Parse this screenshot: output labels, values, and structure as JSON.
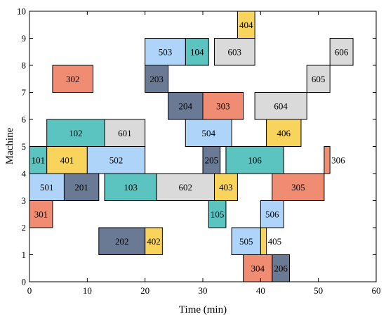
{
  "chart_data": {
    "type": "gantt",
    "title": "",
    "xlabel": "Time (min)",
    "ylabel": "Machine",
    "xlim": [
      0,
      60
    ],
    "ylim": [
      0,
      10
    ],
    "xticks": [
      "0",
      "10",
      "20",
      "30",
      "40",
      "50",
      "60"
    ],
    "yticks": [
      "0",
      "1",
      "2",
      "3",
      "4",
      "5",
      "6",
      "7",
      "8",
      "9",
      "10"
    ],
    "grid": false,
    "colors": {
      "job1": "#5bc4c1",
      "job2": "#6b7a94",
      "job3": "#ef8c72",
      "job4": "#f9d45c",
      "job5": "#aed5f9",
      "job6": "#dadada"
    },
    "operations": [
      {
        "label": "101",
        "job": "job1",
        "x_start": 0,
        "x_end": 3,
        "y_bottom": 4,
        "y_top": 5
      },
      {
        "label": "102",
        "job": "job1",
        "x_start": 3,
        "x_end": 13,
        "y_bottom": 5,
        "y_top": 6
      },
      {
        "label": "103",
        "job": "job1",
        "x_start": 13,
        "x_end": 22,
        "y_bottom": 3,
        "y_top": 4
      },
      {
        "label": "104",
        "job": "job1",
        "x_start": 27,
        "x_end": 31,
        "y_bottom": 8,
        "y_top": 9
      },
      {
        "label": "105",
        "job": "job1",
        "x_start": 31,
        "x_end": 34,
        "y_bottom": 2,
        "y_top": 3
      },
      {
        "label": "106",
        "job": "job1",
        "x_start": 34,
        "x_end": 44,
        "y_bottom": 4,
        "y_top": 5
      },
      {
        "label": "201",
        "job": "job2",
        "x_start": 6,
        "x_end": 12,
        "y_bottom": 3,
        "y_top": 4
      },
      {
        "label": "202",
        "job": "job2",
        "x_start": 12,
        "x_end": 20,
        "y_bottom": 1,
        "y_top": 2
      },
      {
        "label": "203",
        "job": "job2",
        "x_start": 20,
        "x_end": 24,
        "y_bottom": 7,
        "y_top": 8
      },
      {
        "label": "204",
        "job": "job2",
        "x_start": 24,
        "x_end": 30,
        "y_bottom": 6,
        "y_top": 7
      },
      {
        "label": "205",
        "job": "job2",
        "x_start": 30,
        "x_end": 33,
        "y_bottom": 4,
        "y_top": 5
      },
      {
        "label": "206",
        "job": "job2",
        "x_start": 42,
        "x_end": 45,
        "y_bottom": 0,
        "y_top": 1
      },
      {
        "label": "301",
        "job": "job3",
        "x_start": 0,
        "x_end": 4,
        "y_bottom": 2,
        "y_top": 3
      },
      {
        "label": "302",
        "job": "job3",
        "x_start": 4,
        "x_end": 11,
        "y_bottom": 7,
        "y_top": 8
      },
      {
        "label": "303",
        "job": "job3",
        "x_start": 30,
        "x_end": 37,
        "y_bottom": 6,
        "y_top": 7
      },
      {
        "label": "304",
        "job": "job3",
        "x_start": 37,
        "x_end": 42,
        "y_bottom": 0,
        "y_top": 1
      },
      {
        "label": "305",
        "job": "job3",
        "x_start": 42,
        "x_end": 51,
        "y_bottom": 3,
        "y_top": 4
      },
      {
        "label": "306",
        "job": "job3",
        "x_start": 51,
        "x_end": 52,
        "y_bottom": 4,
        "y_top": 5
      },
      {
        "label": "401",
        "job": "job4",
        "x_start": 3,
        "x_end": 10,
        "y_bottom": 4,
        "y_top": 5
      },
      {
        "label": "402",
        "job": "job4",
        "x_start": 20,
        "x_end": 23,
        "y_bottom": 1,
        "y_top": 2
      },
      {
        "label": "403",
        "job": "job4",
        "x_start": 32,
        "x_end": 36,
        "y_bottom": 3,
        "y_top": 4
      },
      {
        "label": "404",
        "job": "job4",
        "x_start": 36,
        "x_end": 39,
        "y_bottom": 9,
        "y_top": 10
      },
      {
        "label": "405",
        "job": "job4",
        "x_start": 40,
        "x_end": 41,
        "y_bottom": 1,
        "y_top": 2
      },
      {
        "label": "406",
        "job": "job4",
        "x_start": 41,
        "x_end": 47,
        "y_bottom": 5,
        "y_top": 6
      },
      {
        "label": "501",
        "job": "job5",
        "x_start": 0,
        "x_end": 6,
        "y_bottom": 3,
        "y_top": 4
      },
      {
        "label": "502",
        "job": "job5",
        "x_start": 10,
        "x_end": 20,
        "y_bottom": 4,
        "y_top": 5
      },
      {
        "label": "503",
        "job": "job5",
        "x_start": 20,
        "x_end": 27,
        "y_bottom": 8,
        "y_top": 9
      },
      {
        "label": "504",
        "job": "job5",
        "x_start": 27,
        "x_end": 35,
        "y_bottom": 5,
        "y_top": 6
      },
      {
        "label": "505",
        "job": "job5",
        "x_start": 35,
        "x_end": 40,
        "y_bottom": 1,
        "y_top": 2
      },
      {
        "label": "506",
        "job": "job5",
        "x_start": 40,
        "x_end": 44,
        "y_bottom": 2,
        "y_top": 3
      },
      {
        "label": "601",
        "job": "job6",
        "x_start": 13,
        "x_end": 20,
        "y_bottom": 5,
        "y_top": 6
      },
      {
        "label": "602",
        "job": "job6",
        "x_start": 22,
        "x_end": 32,
        "y_bottom": 3,
        "y_top": 4
      },
      {
        "label": "603",
        "job": "job6",
        "x_start": 32,
        "x_end": 39,
        "y_bottom": 8,
        "y_top": 9
      },
      {
        "label": "604",
        "job": "job6",
        "x_start": 39,
        "x_end": 48,
        "y_bottom": 6,
        "y_top": 7
      },
      {
        "label": "605",
        "job": "job6",
        "x_start": 48,
        "x_end": 52,
        "y_bottom": 7,
        "y_top": 8
      },
      {
        "label": "606",
        "job": "job6",
        "x_start": 52,
        "x_end": 56,
        "y_bottom": 8,
        "y_top": 9
      }
    ]
  }
}
